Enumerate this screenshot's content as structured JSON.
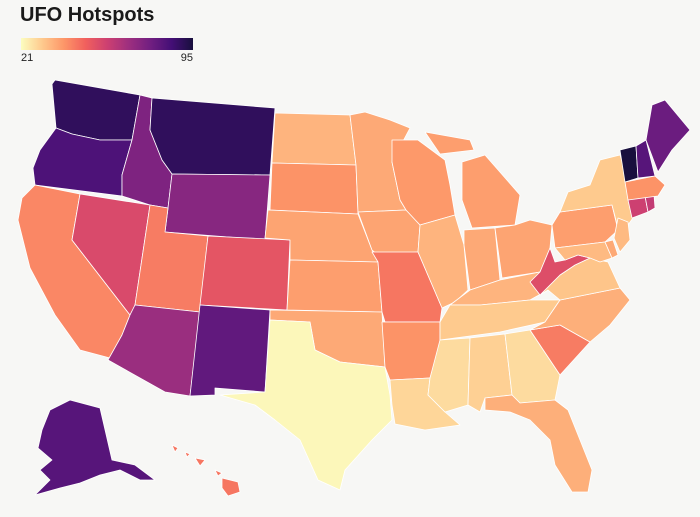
{
  "title": "UFO Hotspots",
  "legend": {
    "min_label": "21",
    "max_label": "95",
    "min": 21,
    "max": 95
  },
  "colorscale": [
    "#fcfdbf",
    "#fec98d",
    "#fd9668",
    "#f1605d",
    "#cd4071",
    "#9e2f7f",
    "#721f81",
    "#440f76",
    "#180f3d"
  ],
  "states": [
    {
      "id": "WA",
      "value": 90
    },
    {
      "id": "OR",
      "value": 84
    },
    {
      "id": "CA",
      "value": 42
    },
    {
      "id": "NV",
      "value": 55
    },
    {
      "id": "ID",
      "value": 74
    },
    {
      "id": "MT",
      "value": 90
    },
    {
      "id": "WY",
      "value": 72
    },
    {
      "id": "UT",
      "value": 44
    },
    {
      "id": "AZ",
      "value": 68
    },
    {
      "id": "CO",
      "value": 52
    },
    {
      "id": "NM",
      "value": 80
    },
    {
      "id": "ND",
      "value": 34
    },
    {
      "id": "SD",
      "value": 40
    },
    {
      "id": "NE",
      "value": 37
    },
    {
      "id": "KS",
      "value": 38
    },
    {
      "id": "OK",
      "value": 36
    },
    {
      "id": "TX",
      "value": 22
    },
    {
      "id": "MN",
      "value": 36
    },
    {
      "id": "IA",
      "value": 37
    },
    {
      "id": "MO",
      "value": 45
    },
    {
      "id": "AR",
      "value": 40
    },
    {
      "id": "LA",
      "value": 28
    },
    {
      "id": "WI",
      "value": 39
    },
    {
      "id": "IL",
      "value": 34
    },
    {
      "id": "MI",
      "value": 38
    },
    {
      "id": "IN",
      "value": 36
    },
    {
      "id": "OH",
      "value": 37
    },
    {
      "id": "KY",
      "value": 34
    },
    {
      "id": "TN",
      "value": 30
    },
    {
      "id": "MS",
      "value": 27
    },
    {
      "id": "AL",
      "value": 29
    },
    {
      "id": "GA",
      "value": 27
    },
    {
      "id": "FL",
      "value": 35
    },
    {
      "id": "SC",
      "value": 44
    },
    {
      "id": "NC",
      "value": 35
    },
    {
      "id": "VA",
      "value": 31
    },
    {
      "id": "WV",
      "value": 54
    },
    {
      "id": "PA",
      "value": 38
    },
    {
      "id": "NY",
      "value": 30
    },
    {
      "id": "MD",
      "value": 33
    },
    {
      "id": "DE",
      "value": 36
    },
    {
      "id": "NJ",
      "value": 33
    },
    {
      "id": "CT",
      "value": 58
    },
    {
      "id": "RI",
      "value": 60
    },
    {
      "id": "MA",
      "value": 40
    },
    {
      "id": "VT",
      "value": 95
    },
    {
      "id": "NH",
      "value": 82
    },
    {
      "id": "ME",
      "value": 78
    },
    {
      "id": "AK",
      "value": 82
    },
    {
      "id": "HI",
      "value": 45
    }
  ]
}
